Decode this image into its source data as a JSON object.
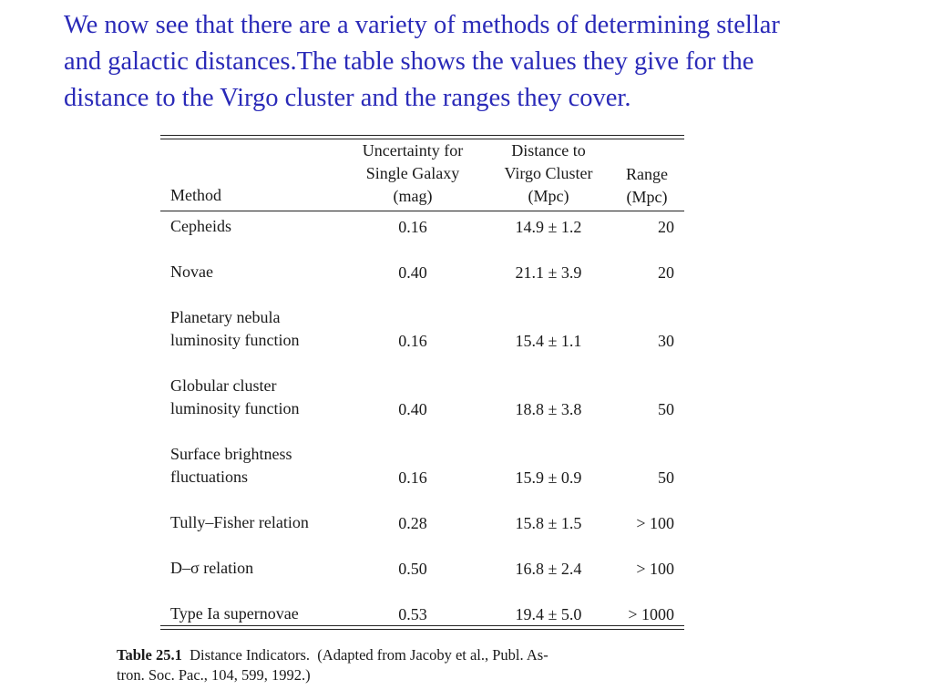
{
  "intro": {
    "line1": "We now see that there are a variety of methods of determining stellar",
    "line2": "and galactic distances.The table shows the values they give for the",
    "line3": "distance to the Virgo cluster and the ranges they cover."
  },
  "table": {
    "headers": {
      "method": "Method",
      "uncertainty": [
        "Uncertainty for",
        "Single Galaxy",
        "(mag)"
      ],
      "distance": [
        "Distance to",
        "Virgo Cluster",
        "(Mpc)"
      ],
      "range": [
        "Range",
        "(Mpc)"
      ]
    },
    "rows": [
      {
        "method": [
          "Cepheids"
        ],
        "uncertainty": "0.16",
        "distance": "14.9 ± 1.2",
        "range": "20"
      },
      {
        "method": [
          "Novae"
        ],
        "uncertainty": "0.40",
        "distance": "21.1 ± 3.9",
        "range": "20"
      },
      {
        "method": [
          "Planetary nebula",
          "luminosity function"
        ],
        "uncertainty": "0.16",
        "distance": "15.4 ± 1.1",
        "range": "30"
      },
      {
        "method": [
          "Globular cluster",
          "luminosity function"
        ],
        "uncertainty": "0.40",
        "distance": "18.8 ± 3.8",
        "range": "50"
      },
      {
        "method": [
          "Surface brightness",
          "fluctuations"
        ],
        "uncertainty": "0.16",
        "distance": "15.9 ± 0.9",
        "range": "50"
      },
      {
        "method": [
          "Tully–Fisher relation"
        ],
        "uncertainty": "0.28",
        "distance": "15.8 ± 1.5",
        "range": "> 100"
      },
      {
        "method": [
          "D–σ relation"
        ],
        "uncertainty": "0.50",
        "distance": "16.8 ± 2.4",
        "range": "> 100"
      },
      {
        "method": [
          "Type Ia supernovae"
        ],
        "uncertainty": "0.53",
        "distance": "19.4 ± 5.0",
        "range": "> 1000"
      }
    ]
  },
  "caption": {
    "label": "Table 25.1",
    "title": "Distance Indicators.",
    "line1_rest": "(Adapted from Jacoby et al., Publ. As-",
    "line2": "tron. Soc. Pac., 104, 599, 1992.)"
  }
}
